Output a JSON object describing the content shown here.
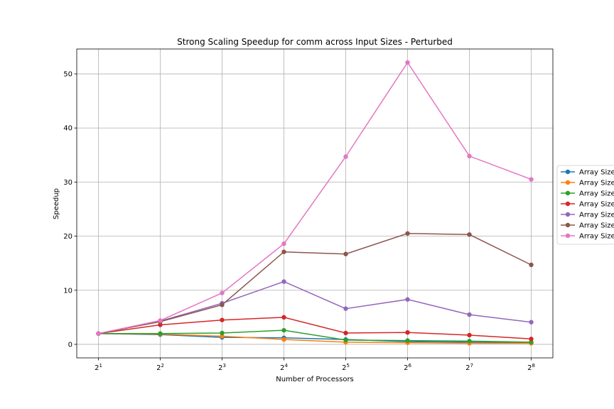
{
  "chart_data": {
    "type": "line",
    "title": "Strong Scaling Speedup for comm across Input Sizes - Perturbed",
    "xlabel": "Number of Processors",
    "ylabel": "Speedup",
    "x_scale": "log2",
    "x": [
      2,
      4,
      8,
      16,
      32,
      64,
      128,
      256
    ],
    "x_tick_labels": [
      {
        "base": "2",
        "exp": "1"
      },
      {
        "base": "2",
        "exp": "2"
      },
      {
        "base": "2",
        "exp": "3"
      },
      {
        "base": "2",
        "exp": "4"
      },
      {
        "base": "2",
        "exp": "5"
      },
      {
        "base": "2",
        "exp": "6"
      },
      {
        "base": "2",
        "exp": "7"
      },
      {
        "base": "2",
        "exp": "8"
      }
    ],
    "y_ticks": [
      0,
      10,
      20,
      30,
      40,
      50
    ],
    "ylim": [
      -2.5,
      54.6
    ],
    "grid": true,
    "legend_position": "right",
    "series": [
      {
        "name": "Array Size",
        "color": "#1f77b4",
        "values": [
          2.0,
          1.8,
          1.3,
          1.2,
          0.9,
          0.5,
          0.4,
          0.3
        ]
      },
      {
        "name": "Array Size",
        "color": "#ff7f0e",
        "values": [
          2.0,
          1.9,
          1.5,
          0.9,
          0.4,
          0.3,
          0.2,
          0.2
        ]
      },
      {
        "name": "Array Size",
        "color": "#2ca02c",
        "values": [
          2.0,
          2.0,
          2.1,
          2.6,
          0.8,
          0.7,
          0.6,
          0.4
        ]
      },
      {
        "name": "Array Size",
        "color": "#d62728",
        "values": [
          2.0,
          3.6,
          4.5,
          5.0,
          2.1,
          2.2,
          1.7,
          1.0
        ]
      },
      {
        "name": "Array Size",
        "color": "#9467bd",
        "values": [
          2.0,
          4.3,
          7.6,
          11.6,
          6.6,
          8.3,
          5.5,
          4.1
        ]
      },
      {
        "name": "Array Size",
        "color": "#8c564b",
        "values": [
          2.0,
          4.2,
          7.3,
          17.1,
          16.7,
          20.5,
          20.3,
          14.7
        ]
      },
      {
        "name": "Array Size",
        "color": "#e377c2",
        "values": [
          2.0,
          4.4,
          9.5,
          18.6,
          34.7,
          52.1,
          34.8,
          30.5
        ]
      }
    ]
  }
}
